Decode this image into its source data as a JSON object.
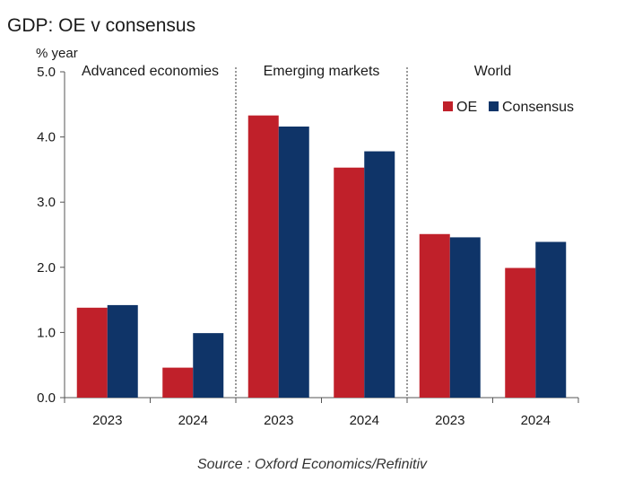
{
  "chart_data": {
    "type": "bar",
    "title": "GDP: OE v consensus",
    "ylabel": "% year",
    "ylim": [
      0,
      5
    ],
    "yticks": [
      "0.0",
      "1.0",
      "2.0",
      "3.0",
      "4.0",
      "5.0"
    ],
    "groups": [
      {
        "label": "Advanced economies",
        "categories": [
          "2023",
          "2024"
        ]
      },
      {
        "label": "Emerging markets",
        "categories": [
          "2023",
          "2024"
        ]
      },
      {
        "label": "World",
        "categories": [
          "2023",
          "2024"
        ]
      }
    ],
    "categories": [
      "2023",
      "2024",
      "2023",
      "2024",
      "2023",
      "2024"
    ],
    "series": [
      {
        "name": "OE",
        "color": "#c0202a",
        "values": [
          1.38,
          0.46,
          4.33,
          3.53,
          2.51,
          1.99
        ]
      },
      {
        "name": "Consensus",
        "color": "#0f3468",
        "values": [
          1.42,
          0.99,
          4.16,
          3.78,
          2.46,
          2.39
        ]
      }
    ],
    "legend": "top-right",
    "grid": false,
    "source": "Source : Oxford Economics/Refinitiv"
  }
}
